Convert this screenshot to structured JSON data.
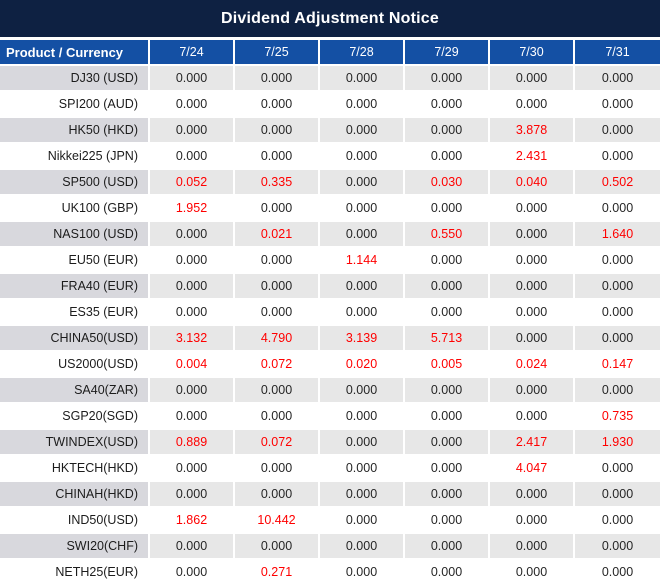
{
  "title": "Dividend Adjustment Notice",
  "colors": {
    "title_bg": "#0e2142",
    "header_bg": "#1450a4",
    "row_gray": "#e7e7e7",
    "row_product_gray": "#d8d8dd",
    "value_red": "#ff0000",
    "value_black": "#262626"
  },
  "table": {
    "header": [
      "Product / Currency",
      "7/24",
      "7/25",
      "7/28",
      "7/29",
      "7/30",
      "7/31"
    ],
    "rows": [
      {
        "product": "DJ30 (USD)",
        "values": [
          "0.000",
          "0.000",
          "0.000",
          "0.000",
          "0.000",
          "0.000"
        ],
        "red": [
          false,
          false,
          false,
          false,
          false,
          false
        ]
      },
      {
        "product": "SPI200 (AUD)",
        "values": [
          "0.000",
          "0.000",
          "0.000",
          "0.000",
          "0.000",
          "0.000"
        ],
        "red": [
          false,
          false,
          false,
          false,
          false,
          false
        ]
      },
      {
        "product": "HK50 (HKD)",
        "values": [
          "0.000",
          "0.000",
          "0.000",
          "0.000",
          "3.878",
          "0.000"
        ],
        "red": [
          false,
          false,
          false,
          false,
          true,
          false
        ]
      },
      {
        "product": "Nikkei225 (JPN)",
        "values": [
          "0.000",
          "0.000",
          "0.000",
          "0.000",
          "2.431",
          "0.000"
        ],
        "red": [
          false,
          false,
          false,
          false,
          true,
          false
        ]
      },
      {
        "product": "SP500 (USD)",
        "values": [
          "0.052",
          "0.335",
          "0.000",
          "0.030",
          "0.040",
          "0.502"
        ],
        "red": [
          true,
          true,
          false,
          true,
          true,
          true
        ]
      },
      {
        "product": "UK100 (GBP)",
        "values": [
          "1.952",
          "0.000",
          "0.000",
          "0.000",
          "0.000",
          "0.000"
        ],
        "red": [
          true,
          false,
          false,
          false,
          false,
          false
        ]
      },
      {
        "product": "NAS100 (USD)",
        "values": [
          "0.000",
          "0.021",
          "0.000",
          "0.550",
          "0.000",
          "1.640"
        ],
        "red": [
          false,
          true,
          false,
          true,
          false,
          true
        ]
      },
      {
        "product": "EU50 (EUR)",
        "values": [
          "0.000",
          "0.000",
          "1.144",
          "0.000",
          "0.000",
          "0.000"
        ],
        "red": [
          false,
          false,
          true,
          false,
          false,
          false
        ]
      },
      {
        "product": "FRA40 (EUR)",
        "values": [
          "0.000",
          "0.000",
          "0.000",
          "0.000",
          "0.000",
          "0.000"
        ],
        "red": [
          false,
          false,
          false,
          false,
          false,
          false
        ]
      },
      {
        "product": "ES35 (EUR)",
        "values": [
          "0.000",
          "0.000",
          "0.000",
          "0.000",
          "0.000",
          "0.000"
        ],
        "red": [
          false,
          false,
          false,
          false,
          false,
          false
        ]
      },
      {
        "product": "CHINA50(USD)",
        "values": [
          "3.132",
          "4.790",
          "3.139",
          "5.713",
          "0.000",
          "0.000"
        ],
        "red": [
          true,
          true,
          true,
          true,
          false,
          false
        ]
      },
      {
        "product": "US2000(USD)",
        "values": [
          "0.004",
          "0.072",
          "0.020",
          "0.005",
          "0.024",
          "0.147"
        ],
        "red": [
          true,
          true,
          true,
          true,
          true,
          true
        ]
      },
      {
        "product": "SA40(ZAR)",
        "values": [
          "0.000",
          "0.000",
          "0.000",
          "0.000",
          "0.000",
          "0.000"
        ],
        "red": [
          false,
          false,
          false,
          false,
          false,
          false
        ]
      },
      {
        "product": "SGP20(SGD)",
        "values": [
          "0.000",
          "0.000",
          "0.000",
          "0.000",
          "0.000",
          "0.735"
        ],
        "red": [
          false,
          false,
          false,
          false,
          false,
          true
        ]
      },
      {
        "product": "TWINDEX(USD)",
        "values": [
          "0.889",
          "0.072",
          "0.000",
          "0.000",
          "2.417",
          "1.930"
        ],
        "red": [
          true,
          true,
          false,
          false,
          true,
          true
        ]
      },
      {
        "product": "HKTECH(HKD)",
        "values": [
          "0.000",
          "0.000",
          "0.000",
          "0.000",
          "4.047",
          "0.000"
        ],
        "red": [
          false,
          false,
          false,
          false,
          true,
          false
        ]
      },
      {
        "product": "CHINAH(HKD)",
        "values": [
          "0.000",
          "0.000",
          "0.000",
          "0.000",
          "0.000",
          "0.000"
        ],
        "red": [
          false,
          false,
          false,
          false,
          false,
          false
        ]
      },
      {
        "product": "IND50(USD)",
        "values": [
          "1.862",
          "10.442",
          "0.000",
          "0.000",
          "0.000",
          "0.000"
        ],
        "red": [
          true,
          true,
          false,
          false,
          false,
          false
        ]
      },
      {
        "product": "SWI20(CHF)",
        "values": [
          "0.000",
          "0.000",
          "0.000",
          "0.000",
          "0.000",
          "0.000"
        ],
        "red": [
          false,
          false,
          false,
          false,
          false,
          false
        ]
      },
      {
        "product": "NETH25(EUR)",
        "values": [
          "0.000",
          "0.271",
          "0.000",
          "0.000",
          "0.000",
          "0.000"
        ],
        "red": [
          false,
          true,
          false,
          false,
          false,
          false
        ]
      }
    ]
  }
}
